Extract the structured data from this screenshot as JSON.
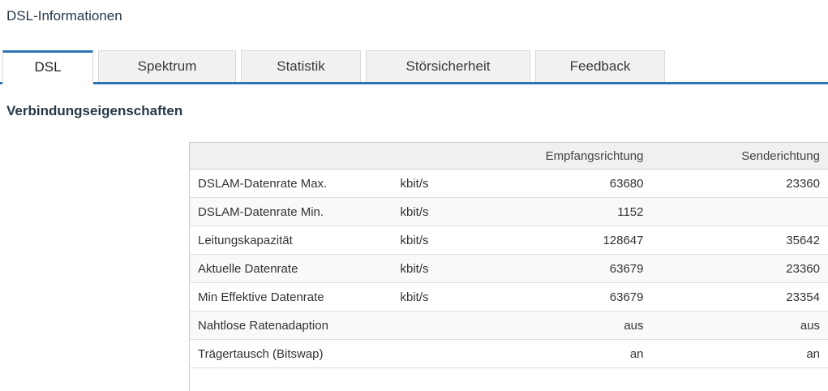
{
  "page": {
    "title": "DSL-Informationen"
  },
  "tabs": [
    {
      "label": "DSL",
      "active": true
    },
    {
      "label": "Spektrum",
      "active": false
    },
    {
      "label": "Statistik",
      "active": false
    },
    {
      "label": "Störsicherheit",
      "active": false
    },
    {
      "label": "Feedback",
      "active": false
    }
  ],
  "section": {
    "heading": "Verbindungseigenschaften"
  },
  "table": {
    "header": {
      "rx": "Empfangsrichtung",
      "tx": "Senderichtung"
    },
    "rows": [
      {
        "label": "DSLAM-Datenrate Max.",
        "unit": "kbit/s",
        "rx": "63680",
        "tx": "23360"
      },
      {
        "label": "DSLAM-Datenrate Min.",
        "unit": "kbit/s",
        "rx": "1152",
        "tx": ""
      },
      {
        "label": "Leitungskapazität",
        "unit": "kbit/s",
        "rx": "128647",
        "tx": "35642"
      },
      {
        "label": "Aktuelle Datenrate",
        "unit": "kbit/s",
        "rx": "63679",
        "tx": "23360"
      },
      {
        "label": "Min Effektive Datenrate",
        "unit": "kbit/s",
        "rx": "63679",
        "tx": "23354"
      },
      {
        "label": "Nahtlose Ratenadaption",
        "unit": "",
        "rx": "aus",
        "tx": "aus"
      },
      {
        "label": "Trägertausch (Bitswap)",
        "unit": "",
        "rx": "an",
        "tx": "an"
      }
    ]
  },
  "colors": {
    "accent_blue": "#2e73b5"
  }
}
